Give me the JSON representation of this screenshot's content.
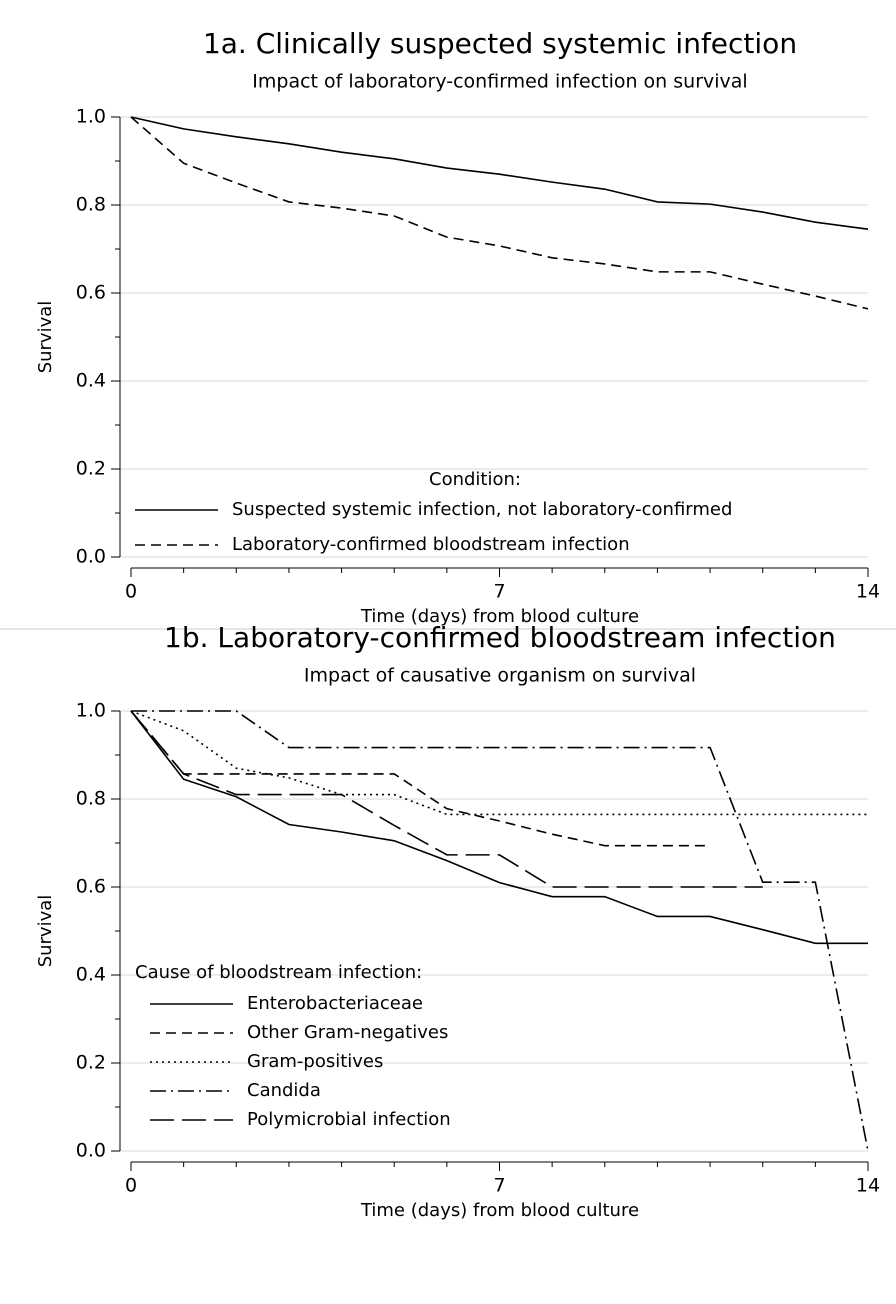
{
  "chart_data": [
    {
      "type": "line",
      "title": "1a.  Clinically suspected systemic infection",
      "subtitle": "Impact of laboratory-confirmed infection on survival",
      "x_label": "Time (days) from blood culture",
      "y_label": "Survival",
      "legend_title": "Condition:",
      "legend": "bottom-center",
      "x": [
        0,
        1,
        2,
        3,
        4,
        5,
        6,
        7,
        8,
        9,
        10,
        11,
        12,
        13,
        14
      ],
      "series": [
        {
          "name": "Suspected systemic infection, not laboratory-confirmed",
          "color": "#000000",
          "dash": "solid",
          "values": [
            1.0,
            0.973,
            0.955,
            0.939,
            0.92,
            0.905,
            0.884,
            0.87,
            0.852,
            0.836,
            0.807,
            0.802,
            0.784,
            0.761,
            0.745
          ]
        },
        {
          "name": "Laboratory-confirmed bloodstream infection",
          "color": "#000000",
          "dash": "dashed",
          "values": [
            1.0,
            0.895,
            0.85,
            0.807,
            0.793,
            0.775,
            0.727,
            0.707,
            0.68,
            0.666,
            0.648,
            0.648,
            0.62,
            0.593,
            0.564
          ]
        }
      ],
      "xlim": [
        0,
        14
      ],
      "xticks": [
        0,
        7,
        14
      ],
      "xminor_step": 1,
      "ylim": [
        0,
        1
      ],
      "yticks": [
        {
          "value": 0,
          "label": "0.0"
        },
        0.2,
        0.4,
        0.6,
        0.8,
        {
          "value": 1,
          "label": "1.0"
        }
      ],
      "yminor_step": 0.1,
      "grid": true
    },
    {
      "type": "line",
      "title": "1b.  Laboratory-confirmed bloodstream infection",
      "subtitle": "Impact of causative organism on survival",
      "x_label": "Time (days) from blood culture",
      "y_label": "Survival",
      "legend_title": "Cause of bloodstream infection:",
      "legend": "bottom-left",
      "x": [
        0,
        1,
        2,
        3,
        4,
        5,
        6,
        7,
        8,
        9,
        10,
        11,
        12,
        13,
        14
      ],
      "series": [
        {
          "name": "Enterobacteriaceae",
          "color": "#000000",
          "dash": "solid",
          "values": [
            1.0,
            0.845,
            0.805,
            0.742,
            0.725,
            0.705,
            0.66,
            0.61,
            0.578,
            0.578,
            0.533,
            0.533,
            0.503,
            0.472,
            0.472
          ]
        },
        {
          "name": "Other Gram-negatives",
          "color": "#000000",
          "dash": "dashed",
          "values": [
            1.0,
            0.857,
            0.857,
            0.857,
            0.857,
            0.857,
            0.778,
            0.75,
            0.72,
            0.694,
            0.694,
            0.694,
            null,
            null,
            null
          ]
        },
        {
          "name": "Gram-positives",
          "color": "#000000",
          "dash": "dotted",
          "values": [
            1.0,
            0.955,
            0.87,
            0.848,
            0.81,
            0.81,
            0.765,
            0.765,
            0.765,
            0.765,
            0.765,
            0.765,
            0.765,
            0.765,
            0.765
          ]
        },
        {
          "name": "Candida",
          "color": "#000000",
          "dash": "dashdot",
          "values": [
            1.0,
            1.0,
            1.0,
            0.917,
            0.917,
            0.917,
            0.917,
            0.917,
            0.917,
            0.917,
            0.917,
            0.917,
            0.611,
            0.611,
            0.0
          ]
        },
        {
          "name": "Polymicrobial infection",
          "color": "#000000",
          "dash": "longdash",
          "values": [
            1.0,
            0.857,
            0.81,
            0.81,
            0.81,
            0.74,
            0.673,
            0.673,
            0.6,
            0.6,
            0.6,
            0.6,
            0.6,
            null,
            null
          ]
        }
      ],
      "xlim": [
        0,
        14
      ],
      "xticks": [
        0,
        7,
        14
      ],
      "xminor_step": 1,
      "ylim": [
        0,
        1
      ],
      "yticks": [
        {
          "value": 0,
          "label": "0.0"
        },
        0.2,
        0.4,
        0.6,
        0.8,
        {
          "value": 1,
          "label": "1.0"
        }
      ],
      "yminor_step": 0.1,
      "grid": true
    }
  ]
}
